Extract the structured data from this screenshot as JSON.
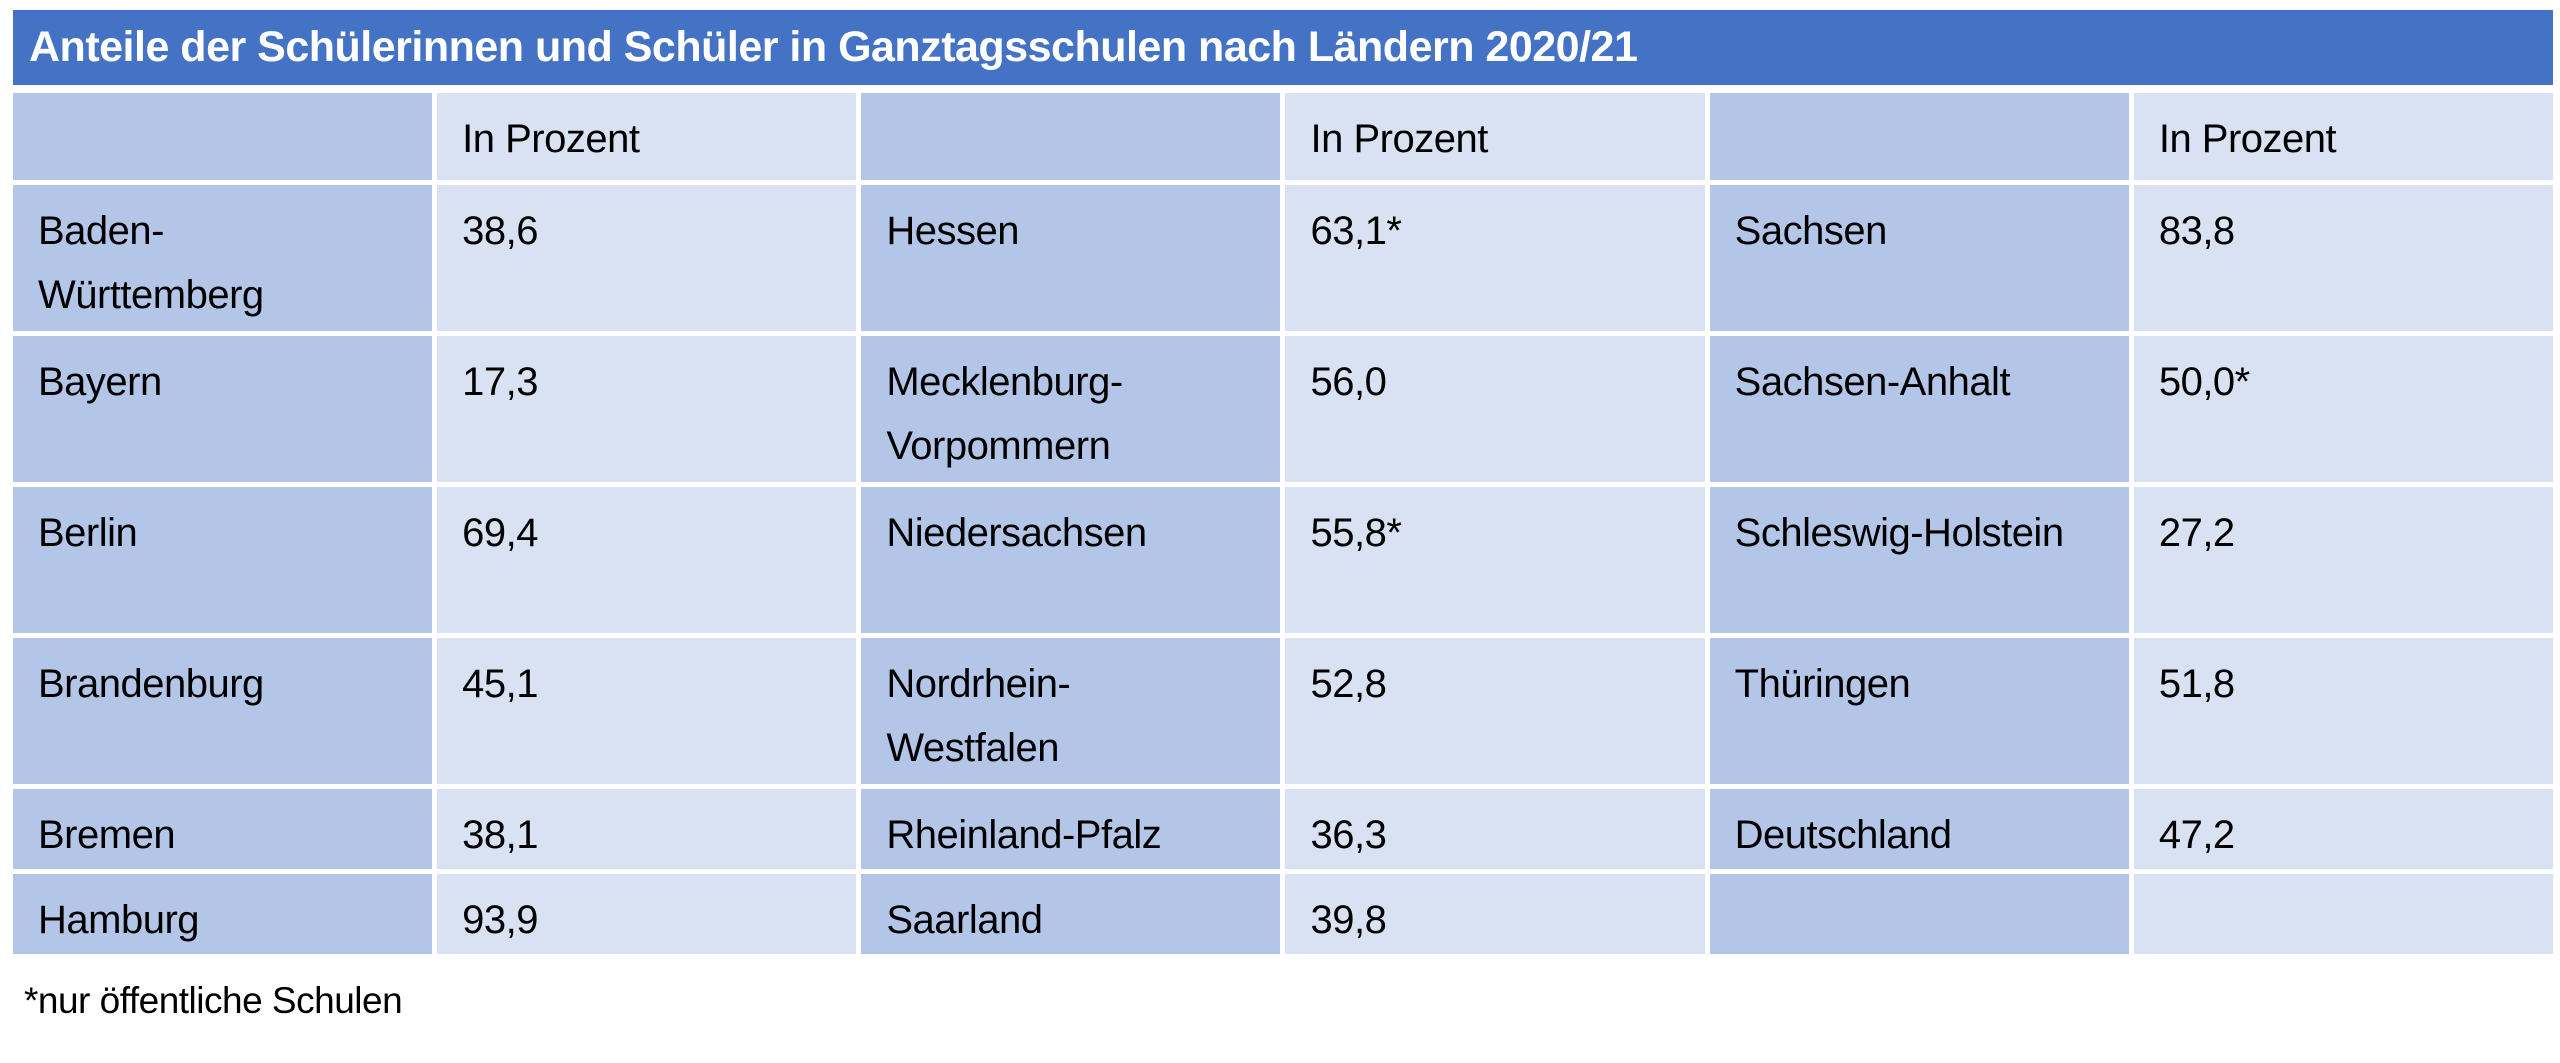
{
  "title": "Anteile der Schülerinnen und Schüler in Ganztagsschulen nach Ländern 2020/21",
  "footnote": "*nur öffentliche Schulen",
  "colors": {
    "title_bg": "#4472C4",
    "title_text": "#FFFFFF",
    "name_cell_bg": "#B4C6E7",
    "value_cell_bg": "#D9E2F3",
    "text": "#000000",
    "page_bg": "#FFFFFF"
  },
  "grid": {
    "header": [
      "",
      "In Prozent",
      "",
      "In Prozent",
      "",
      "In Prozent"
    ],
    "rows": [
      [
        "Baden-Württemberg",
        "38,6",
        "Hessen",
        "63,1*",
        "Sachsen",
        "83,8"
      ],
      [
        "Bayern",
        "17,3",
        "Mecklenburg-Vorpommern",
        "56,0",
        "Sachsen-Anhalt",
        "50,0*"
      ],
      [
        "Berlin",
        "69,4",
        "Niedersachsen",
        "55,8*",
        "Schleswig-Holstein",
        "27,2"
      ],
      [
        "Brandenburg",
        "45,1",
        "Nordrhein-Westfalen",
        "52,8",
        "Thüringen",
        "51,8"
      ],
      [
        "Bremen",
        "38,1",
        "Rheinland-Pfalz",
        "36,3",
        "Deutschland",
        "47,2"
      ],
      [
        "Hamburg",
        "93,9",
        "Saarland",
        "39,8",
        "",
        ""
      ]
    ]
  },
  "chart_data": {
    "type": "table",
    "title": "Anteile der Schülerinnen und Schüler in Ganztagsschulen nach Ländern 2020/21",
    "value_column_header": "In Prozent",
    "unit": "Prozent",
    "footnote": "*nur öffentliche Schulen",
    "entries": [
      {
        "land": "Baden-Württemberg",
        "value": 38.6,
        "label": "38,6"
      },
      {
        "land": "Bayern",
        "value": 17.3,
        "label": "17,3"
      },
      {
        "land": "Berlin",
        "value": 69.4,
        "label": "69,4"
      },
      {
        "land": "Brandenburg",
        "value": 45.1,
        "label": "45,1"
      },
      {
        "land": "Bremen",
        "value": 38.1,
        "label": "38,1"
      },
      {
        "land": "Hamburg",
        "value": 93.9,
        "label": "93,9"
      },
      {
        "land": "Hessen",
        "value": 63.1,
        "label": "63,1*",
        "note": "nur öffentliche Schulen"
      },
      {
        "land": "Mecklenburg-Vorpommern",
        "value": 56.0,
        "label": "56,0"
      },
      {
        "land": "Niedersachsen",
        "value": 55.8,
        "label": "55,8*",
        "note": "nur öffentliche Schulen"
      },
      {
        "land": "Nordrhein-Westfalen",
        "value": 52.8,
        "label": "52,8"
      },
      {
        "land": "Rheinland-Pfalz",
        "value": 36.3,
        "label": "36,3"
      },
      {
        "land": "Saarland",
        "value": 39.8,
        "label": "39,8"
      },
      {
        "land": "Sachsen",
        "value": 83.8,
        "label": "83,8"
      },
      {
        "land": "Sachsen-Anhalt",
        "value": 50.0,
        "label": "50,0*",
        "note": "nur öffentliche Schulen"
      },
      {
        "land": "Schleswig-Holstein",
        "value": 27.2,
        "label": "27,2"
      },
      {
        "land": "Thüringen",
        "value": 51.8,
        "label": "51,8"
      },
      {
        "land": "Deutschland",
        "value": 47.2,
        "label": "47,2"
      }
    ]
  }
}
